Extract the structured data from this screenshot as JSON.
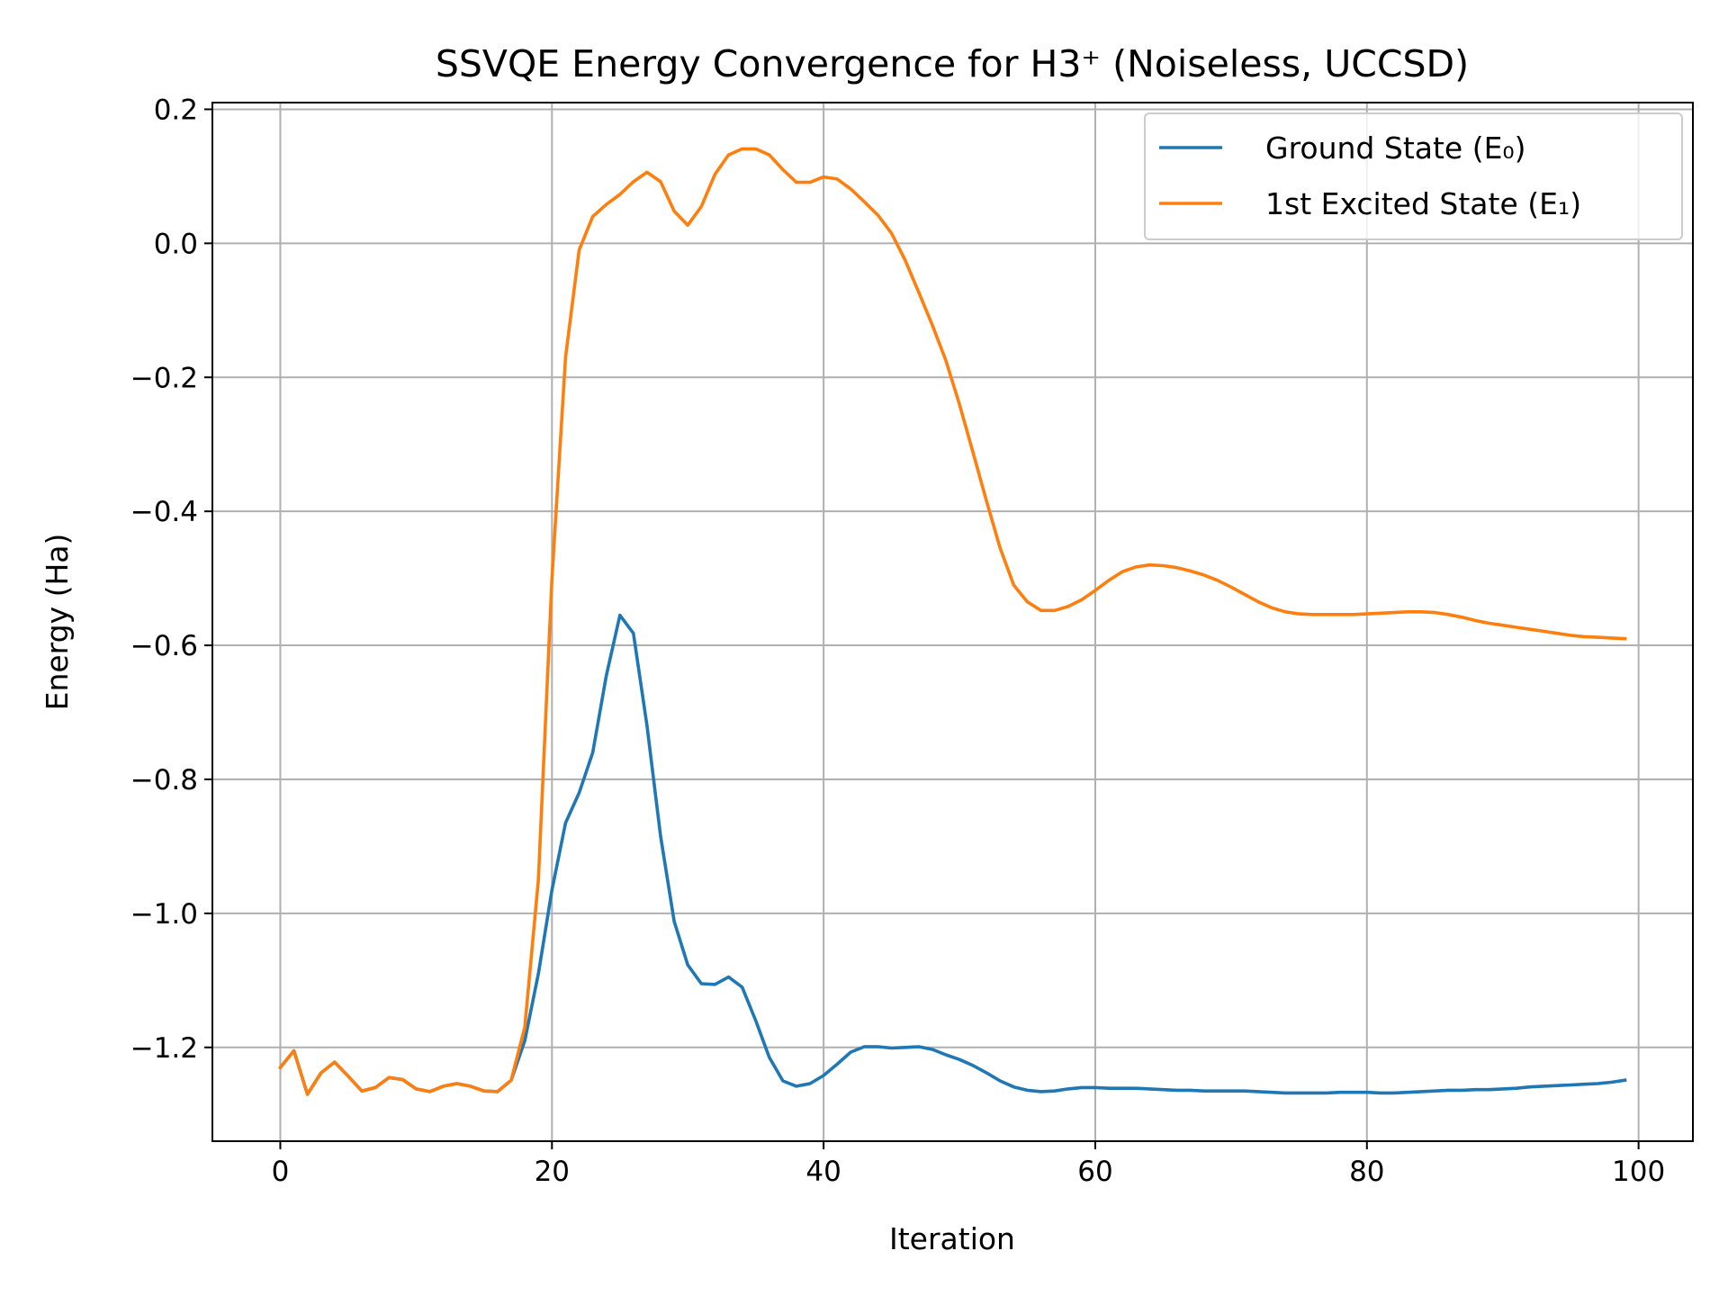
{
  "chart_data": {
    "type": "line",
    "title": "SSVQE Energy Convergence for H3⁺ (Noiseless, UCCSD)",
    "xlabel": "Iteration",
    "ylabel": "Energy (Ha)",
    "xlim": [
      -5,
      104
    ],
    "ylim": [
      -1.34,
      0.21
    ],
    "xticks": [
      0,
      20,
      40,
      60,
      80,
      100
    ],
    "xtick_labels": [
      "0",
      "20",
      "40",
      "60",
      "80",
      "100"
    ],
    "yticks": [
      0.2,
      0.0,
      -0.2,
      -0.4,
      -0.6,
      -0.8,
      -1.0,
      -1.2
    ],
    "ytick_labels": [
      "0.2",
      "0.0",
      "−0.2",
      "−0.4",
      "−0.6",
      "−0.8",
      "−1.0",
      "−1.2"
    ],
    "grid": true,
    "legend_position": "top-right",
    "series": [
      {
        "name": "Ground State (E₀)",
        "color": "#1f77b4",
        "x": [
          0,
          1,
          2,
          3,
          4,
          5,
          6,
          7,
          8,
          9,
          10,
          11,
          12,
          13,
          14,
          15,
          16,
          17,
          18,
          19,
          20,
          21,
          22,
          23,
          24,
          25,
          26,
          27,
          28,
          29,
          30,
          31,
          32,
          33,
          34,
          35,
          36,
          37,
          38,
          39,
          40,
          41,
          42,
          43,
          44,
          45,
          46,
          47,
          48,
          49,
          50,
          51,
          52,
          53,
          54,
          55,
          56,
          57,
          58,
          59,
          60,
          61,
          62,
          63,
          64,
          65,
          66,
          67,
          68,
          69,
          70,
          71,
          72,
          73,
          74,
          75,
          76,
          77,
          78,
          79,
          80,
          81,
          82,
          83,
          84,
          85,
          86,
          87,
          88,
          89,
          90,
          91,
          92,
          93,
          94,
          95,
          96,
          97,
          98,
          99
        ],
        "y": [
          -1.23,
          -1.205,
          -1.27,
          -1.238,
          -1.222,
          -1.243,
          -1.265,
          -1.26,
          -1.245,
          -1.248,
          -1.262,
          -1.266,
          -1.258,
          -1.254,
          -1.258,
          -1.265,
          -1.266,
          -1.249,
          -1.19,
          -1.09,
          -0.965,
          -0.865,
          -0.82,
          -0.76,
          -0.645,
          -0.555,
          -0.582,
          -0.72,
          -0.885,
          -1.012,
          -1.077,
          -1.105,
          -1.106,
          -1.095,
          -1.11,
          -1.16,
          -1.215,
          -1.25,
          -1.258,
          -1.254,
          -1.242,
          -1.225,
          -1.207,
          -1.199,
          -1.199,
          -1.201,
          -1.2,
          -1.199,
          -1.203,
          -1.211,
          -1.218,
          -1.227,
          -1.238,
          -1.25,
          -1.259,
          -1.264,
          -1.266,
          -1.265,
          -1.262,
          -1.26,
          -1.26,
          -1.261,
          -1.261,
          -1.261,
          -1.262,
          -1.263,
          -1.264,
          -1.264,
          -1.265,
          -1.265,
          -1.265,
          -1.265,
          -1.266,
          -1.267,
          -1.268,
          -1.268,
          -1.268,
          -1.268,
          -1.267,
          -1.267,
          -1.267,
          -1.268,
          -1.268,
          -1.267,
          -1.266,
          -1.265,
          -1.264,
          -1.264,
          -1.263,
          -1.263,
          -1.262,
          -1.261,
          -1.259,
          -1.258,
          -1.257,
          -1.256,
          -1.255,
          -1.254,
          -1.252,
          -1.249
        ]
      },
      {
        "name": "1st Excited State (E₁)",
        "color": "#ff7f0e",
        "x": [
          0,
          1,
          2,
          3,
          4,
          5,
          6,
          7,
          8,
          9,
          10,
          11,
          12,
          13,
          14,
          15,
          16,
          17,
          18,
          19,
          20,
          21,
          22,
          23,
          24,
          25,
          26,
          27,
          28,
          29,
          30,
          31,
          32,
          33,
          34,
          35,
          36,
          37,
          38,
          39,
          40,
          41,
          42,
          43,
          44,
          45,
          46,
          47,
          48,
          49,
          50,
          51,
          52,
          53,
          54,
          55,
          56,
          57,
          58,
          59,
          60,
          61,
          62,
          63,
          64,
          65,
          66,
          67,
          68,
          69,
          70,
          71,
          72,
          73,
          74,
          75,
          76,
          77,
          78,
          79,
          80,
          81,
          82,
          83,
          84,
          85,
          86,
          87,
          88,
          89,
          90,
          91,
          92,
          93,
          94,
          95,
          96,
          97,
          98,
          99
        ],
        "y": [
          -1.23,
          -1.205,
          -1.27,
          -1.238,
          -1.222,
          -1.243,
          -1.265,
          -1.26,
          -1.245,
          -1.248,
          -1.262,
          -1.266,
          -1.258,
          -1.254,
          -1.258,
          -1.265,
          -1.266,
          -1.249,
          -1.17,
          -0.95,
          -0.5,
          -0.17,
          -0.01,
          0.04,
          0.058,
          0.073,
          0.092,
          0.106,
          0.092,
          0.048,
          0.027,
          0.055,
          0.103,
          0.132,
          0.141,
          0.141,
          0.132,
          0.11,
          0.091,
          0.091,
          0.099,
          0.096,
          0.081,
          0.062,
          0.042,
          0.015,
          -0.025,
          -0.073,
          -0.122,
          -0.175,
          -0.24,
          -0.312,
          -0.385,
          -0.455,
          -0.51,
          -0.535,
          -0.548,
          -0.548,
          -0.542,
          -0.532,
          -0.518,
          -0.503,
          -0.49,
          -0.483,
          -0.48,
          -0.481,
          -0.484,
          -0.489,
          -0.495,
          -0.503,
          -0.513,
          -0.524,
          -0.535,
          -0.544,
          -0.55,
          -0.553,
          -0.554,
          -0.554,
          -0.554,
          -0.554,
          -0.553,
          -0.552,
          -0.551,
          -0.55,
          -0.55,
          -0.551,
          -0.554,
          -0.558,
          -0.563,
          -0.567,
          -0.57,
          -0.573,
          -0.576,
          -0.579,
          -0.582,
          -0.585,
          -0.587,
          -0.588,
          -0.589,
          -0.59
        ]
      }
    ]
  }
}
